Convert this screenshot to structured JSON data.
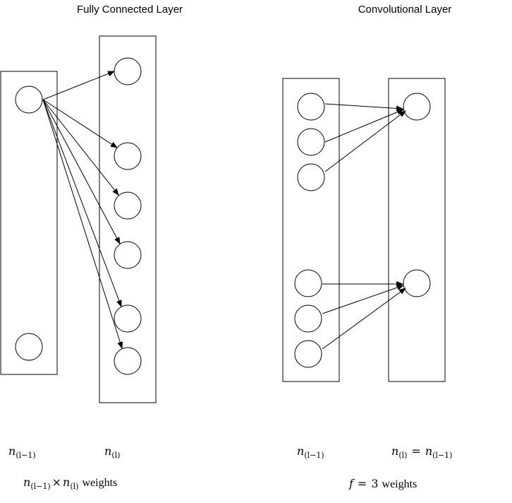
{
  "fully_connected": {
    "title": "Fully Connected Layer",
    "input_label": {
      "base": "n",
      "sub": "(l−1)"
    },
    "output_label": {
      "base": "n",
      "sub": "(l)"
    },
    "formula": {
      "a": {
        "base": "n",
        "sub": "(l−1)"
      },
      "times": "×",
      "b": {
        "base": "n",
        "sub": "(l)"
      },
      "suffix": "weights"
    }
  },
  "convolutional": {
    "title": "Convolutional Layer",
    "input_label": {
      "base": "n",
      "sub": "(l−1)"
    },
    "output_label": {
      "base": "n",
      "sub": "(l)"
    },
    "equals": "=",
    "output_rhs": {
      "base": "n",
      "sub": "(l−1)"
    },
    "formula": {
      "var": "f",
      "equals": "=",
      "value": "3",
      "suffix": "weights"
    }
  }
}
